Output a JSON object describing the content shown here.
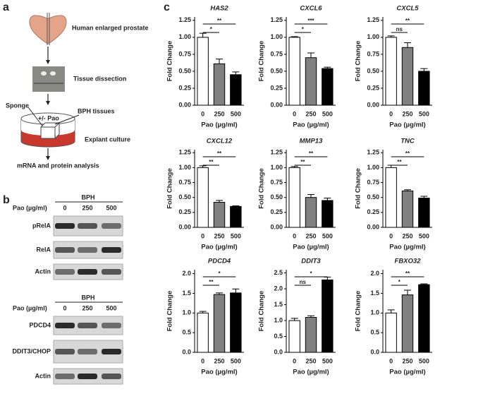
{
  "panel_labels": [
    "a",
    "b",
    "c"
  ],
  "schematic": {
    "steps": [
      "Human enlarged prostate",
      "Tissue dissection",
      "Explant culture",
      "mRNA and protein analysis"
    ],
    "callouts": [
      "Sponge",
      "BPH tissues",
      "+/- Pao"
    ]
  },
  "blots": [
    {
      "group": "BPH",
      "treatment": "Pao (µg/ml)",
      "lanes": [
        "0",
        "250",
        "500"
      ],
      "rows": [
        "pRelA",
        "RelA",
        "Actin"
      ]
    },
    {
      "group": "BPH",
      "treatment": "Pao (µg/ml)",
      "lanes": [
        "0",
        "250",
        "500"
      ],
      "rows": [
        "PDCD4",
        "DDIT3/CHOP",
        "Actin"
      ]
    }
  ],
  "chart_data": [
    {
      "type": "bar",
      "title": "HAS2",
      "ylabel": "Fold Change",
      "xlabel": "Pao (µg/ml)",
      "categories": [
        "0",
        "250",
        "500"
      ],
      "values": [
        1.0,
        0.61,
        0.45
      ],
      "errors": [
        0.06,
        0.07,
        0.04
      ],
      "colors": [
        "#ffffff",
        "#808080",
        "#000000"
      ],
      "ylim": [
        0,
        1.3
      ],
      "yticks": [
        {
          "value": 0,
          "label": "0.00"
        },
        {
          "value": 0.25,
          "label": "0.25"
        },
        {
          "value": 0.5,
          "label": "0.50"
        },
        {
          "value": 0.75,
          "label": "0.75"
        },
        {
          "value": 1,
          "label": "1.00"
        },
        {
          "value": 1.25,
          "label": "1.25"
        }
      ],
      "comparisons": [
        {
          "label": "*",
          "groups": [
            "0",
            "250"
          ]
        },
        {
          "label": "**",
          "groups": [
            "0",
            "500"
          ]
        }
      ]
    },
    {
      "type": "bar",
      "title": "CXCL6",
      "ylabel": "Fold Change",
      "xlabel": "Pao (µg/ml)",
      "categories": [
        "0",
        "250",
        "500"
      ],
      "values": [
        1.0,
        0.7,
        0.54
      ],
      "errors": [
        0.01,
        0.07,
        0.02
      ],
      "colors": [
        "#ffffff",
        "#808080",
        "#000000"
      ],
      "ylim": [
        0,
        1.3
      ],
      "yticks": [
        {
          "value": 0,
          "label": "0.00"
        },
        {
          "value": 0.25,
          "label": "0.25"
        },
        {
          "value": 0.5,
          "label": "0.50"
        },
        {
          "value": 0.75,
          "label": "0.75"
        },
        {
          "value": 1,
          "label": "1.00"
        },
        {
          "value": 1.25,
          "label": "1.25"
        }
      ],
      "comparisons": [
        {
          "label": "*",
          "groups": [
            "0",
            "250"
          ]
        },
        {
          "label": "***",
          "groups": [
            "0",
            "500"
          ]
        }
      ]
    },
    {
      "type": "bar",
      "title": "CXCL5",
      "ylabel": "Fold Change",
      "xlabel": "Pao (µg/ml)",
      "categories": [
        "0",
        "250",
        "500"
      ],
      "values": [
        1.0,
        0.85,
        0.5
      ],
      "errors": [
        0.02,
        0.07,
        0.04
      ],
      "colors": [
        "#ffffff",
        "#808080",
        "#000000"
      ],
      "ylim": [
        0,
        1.3
      ],
      "yticks": [
        {
          "value": 0,
          "label": "0.00"
        },
        {
          "value": 0.25,
          "label": "0.25"
        },
        {
          "value": 0.5,
          "label": "0.50"
        },
        {
          "value": 0.75,
          "label": "0.75"
        },
        {
          "value": 1,
          "label": "1.00"
        },
        {
          "value": 1.25,
          "label": "1.25"
        }
      ],
      "comparisons": [
        {
          "label": "ns",
          "groups": [
            "0",
            "250"
          ]
        },
        {
          "label": "**",
          "groups": [
            "0",
            "500"
          ]
        }
      ]
    },
    {
      "type": "bar",
      "title": "CXCL12",
      "ylabel": "Fold Change",
      "xlabel": "Pao (µg/ml)",
      "categories": [
        "0",
        "250",
        "500"
      ],
      "values": [
        1.0,
        0.42,
        0.35
      ],
      "errors": [
        0.03,
        0.03,
        0.01
      ],
      "colors": [
        "#ffffff",
        "#808080",
        "#000000"
      ],
      "ylim": [
        0,
        1.3
      ],
      "yticks": [
        {
          "value": 0,
          "label": "0.00"
        },
        {
          "value": 0.25,
          "label": "0.25"
        },
        {
          "value": 0.5,
          "label": "0.50"
        },
        {
          "value": 0.75,
          "label": "0.75"
        },
        {
          "value": 1,
          "label": "1.00"
        },
        {
          "value": 1.25,
          "label": "1.25"
        }
      ],
      "comparisons": [
        {
          "label": "**",
          "groups": [
            "0",
            "250"
          ]
        },
        {
          "label": "**",
          "groups": [
            "0",
            "500"
          ]
        }
      ]
    },
    {
      "type": "bar",
      "title": "MMP13",
      "ylabel": "Fold Change",
      "xlabel": "Pao (µg/ml)",
      "categories": [
        "0",
        "250",
        "500"
      ],
      "values": [
        1.0,
        0.5,
        0.45
      ],
      "errors": [
        0.02,
        0.05,
        0.04
      ],
      "colors": [
        "#ffffff",
        "#808080",
        "#000000"
      ],
      "ylim": [
        0,
        1.3
      ],
      "yticks": [
        {
          "value": 0,
          "label": "0.00"
        },
        {
          "value": 0.25,
          "label": "0.25"
        },
        {
          "value": 0.5,
          "label": "0.50"
        },
        {
          "value": 0.75,
          "label": "0.75"
        },
        {
          "value": 1,
          "label": "1.00"
        },
        {
          "value": 1.25,
          "label": "1.25"
        }
      ],
      "comparisons": [
        {
          "label": "**",
          "groups": [
            "0",
            "250"
          ]
        },
        {
          "label": "**",
          "groups": [
            "0",
            "500"
          ]
        }
      ]
    },
    {
      "type": "bar",
      "title": "TNC",
      "ylabel": "Fold Change",
      "xlabel": "Pao (µg/ml)",
      "categories": [
        "0",
        "250",
        "500"
      ],
      "values": [
        1.0,
        0.61,
        0.49
      ],
      "errors": [
        0.04,
        0.02,
        0.03
      ],
      "colors": [
        "#ffffff",
        "#808080",
        "#000000"
      ],
      "ylim": [
        0,
        1.3
      ],
      "yticks": [
        {
          "value": 0,
          "label": "0.00"
        },
        {
          "value": 0.25,
          "label": "0.25"
        },
        {
          "value": 0.5,
          "label": "0.50"
        },
        {
          "value": 0.75,
          "label": "0.75"
        },
        {
          "value": 1,
          "label": "1.00"
        },
        {
          "value": 1.25,
          "label": "1.25"
        }
      ],
      "comparisons": [
        {
          "label": "**",
          "groups": [
            "0",
            "250"
          ]
        },
        {
          "label": "**",
          "groups": [
            "0",
            "500"
          ]
        }
      ]
    },
    {
      "type": "bar",
      "title": "PDCD4",
      "ylabel": "Fold Change",
      "xlabel": "Pao (µg/ml)",
      "categories": [
        "0",
        "250",
        "500"
      ],
      "values": [
        1.0,
        1.47,
        1.51
      ],
      "errors": [
        0.04,
        0.04,
        0.1
      ],
      "colors": [
        "#ffffff",
        "#808080",
        "#000000"
      ],
      "ylim": [
        0,
        2.1
      ],
      "yticks": [
        {
          "value": 0,
          "label": "0.0"
        },
        {
          "value": 0.5,
          "label": "0.5"
        },
        {
          "value": 1,
          "label": "1.0"
        },
        {
          "value": 1.5,
          "label": "1.5"
        },
        {
          "value": 2,
          "label": "2.0"
        }
      ],
      "comparisons": [
        {
          "label": "**",
          "groups": [
            "0",
            "250"
          ]
        },
        {
          "label": "*",
          "groups": [
            "0",
            "500"
          ]
        }
      ]
    },
    {
      "type": "bar",
      "title": "DDIT3",
      "ylabel": "Fold Change",
      "xlabel": "Pao (µg/ml)",
      "categories": [
        "0",
        "250",
        "500"
      ],
      "values": [
        1.0,
        1.1,
        2.28
      ],
      "errors": [
        0.07,
        0.05,
        0.09
      ],
      "colors": [
        "#ffffff",
        "#808080",
        "#000000"
      ],
      "ylim": [
        0,
        2.6
      ],
      "yticks": [
        {
          "value": 0,
          "label": "0.0"
        },
        {
          "value": 0.5,
          "label": "0.5"
        },
        {
          "value": 1,
          "label": "1.0"
        },
        {
          "value": 1.5,
          "label": "1.5"
        },
        {
          "value": 2,
          "label": "2.0"
        },
        {
          "value": 2.5,
          "label": "2.5"
        }
      ],
      "comparisons": [
        {
          "label": "ns",
          "groups": [
            "0",
            "250"
          ]
        },
        {
          "label": "*",
          "groups": [
            "0",
            "500"
          ]
        }
      ]
    },
    {
      "type": "bar",
      "title": "FBXO32",
      "ylabel": "Fold Change",
      "xlabel": "Pao (µg/ml)",
      "categories": [
        "0",
        "250",
        "500"
      ],
      "values": [
        1.0,
        1.46,
        1.72
      ],
      "errors": [
        0.08,
        0.12,
        0.02
      ],
      "colors": [
        "#ffffff",
        "#808080",
        "#000000"
      ],
      "ylim": [
        0,
        2.1
      ],
      "yticks": [
        {
          "value": 0,
          "label": "0.0"
        },
        {
          "value": 0.5,
          "label": "0.5"
        },
        {
          "value": 1,
          "label": "1.0"
        },
        {
          "value": 1.5,
          "label": "1.5"
        },
        {
          "value": 2,
          "label": "2.0"
        }
      ],
      "comparisons": [
        {
          "label": "*",
          "groups": [
            "0",
            "250"
          ]
        },
        {
          "label": "**",
          "groups": [
            "0",
            "500"
          ]
        }
      ]
    }
  ]
}
